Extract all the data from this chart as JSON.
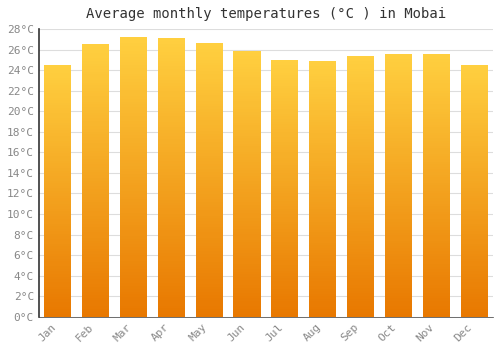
{
  "title": "Average monthly temperatures (°C ) in Mobai",
  "months": [
    "Jan",
    "Feb",
    "Mar",
    "Apr",
    "May",
    "Jun",
    "Jul",
    "Aug",
    "Sep",
    "Oct",
    "Nov",
    "Dec"
  ],
  "values": [
    24.5,
    26.5,
    27.2,
    27.1,
    26.6,
    25.9,
    25.0,
    24.9,
    25.4,
    25.6,
    25.6,
    24.5
  ],
  "bar_color_bottom": "#E87800",
  "bar_color_top": "#FFD040",
  "ylim": [
    0,
    28
  ],
  "ytick_step": 2,
  "background_color": "#FFFFFF",
  "plot_bg_color": "#FFFFFF",
  "grid_color": "#DDDDDD",
  "title_fontsize": 10,
  "tick_fontsize": 8,
  "spine_color": "#333333",
  "tick_label_color": "#888888"
}
